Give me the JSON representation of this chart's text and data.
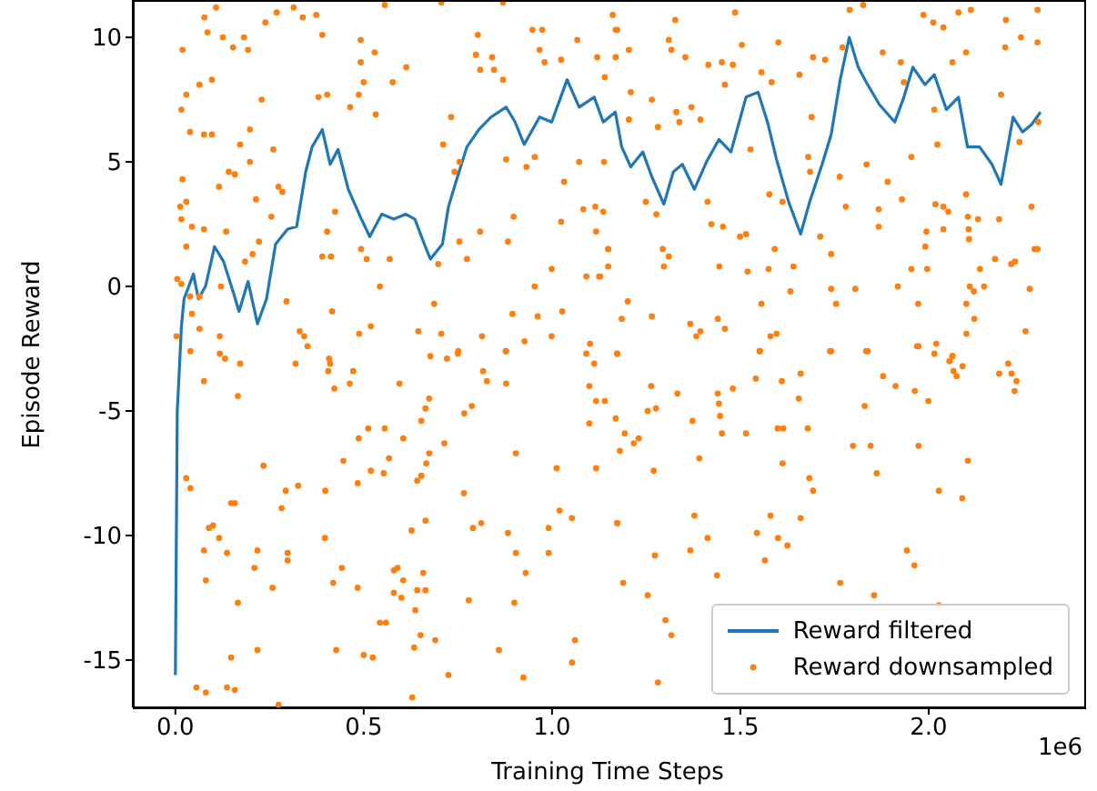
{
  "chart_data": {
    "type": "line",
    "xlabel": "Training Time Steps",
    "ylabel": "Episode Reward",
    "annotations": [
      "1e6"
    ],
    "legend": "bottom right",
    "xlim": [
      -0.113,
      2.413
    ],
    "xticks": [
      {
        "value": 0,
        "label": "0.0"
      },
      {
        "value": 0.5,
        "label": "0.5"
      },
      {
        "value": 1,
        "label": "1.0"
      },
      {
        "value": 1.5,
        "label": "1.5"
      },
      {
        "value": 2,
        "label": "2.0"
      }
    ],
    "ylim": [
      -16.9,
      11.5
    ],
    "yticks": [
      -15,
      -10,
      -5,
      0,
      5,
      10
    ],
    "series": [
      {
        "name": "Reward filtered",
        "color": "#1f77b4",
        "line_style": "solid",
        "x": [
          0,
          0.005,
          0.011,
          0.016,
          0.023,
          0.048,
          0.061,
          0.08,
          0.104,
          0.128,
          0.153,
          0.169,
          0.193,
          0.218,
          0.242,
          0.266,
          0.298,
          0.322,
          0.346,
          0.363,
          0.39,
          0.411,
          0.432,
          0.459,
          0.491,
          0.516,
          0.548,
          0.58,
          0.612,
          0.636,
          0.661,
          0.677,
          0.709,
          0.725,
          0.749,
          0.774,
          0.806,
          0.838,
          0.878,
          0.902,
          0.926,
          0.967,
          0.999,
          1.04,
          1.072,
          1.112,
          1.136,
          1.168,
          1.185,
          1.209,
          1.241,
          1.265,
          1.297,
          1.322,
          1.346,
          1.378,
          1.41,
          1.443,
          1.475,
          1.515,
          1.547,
          1.572,
          1.596,
          1.628,
          1.66,
          1.684,
          1.717,
          1.741,
          1.765,
          1.789,
          1.813,
          1.838,
          1.869,
          1.91,
          1.934,
          1.958,
          1.99,
          2.015,
          2.047,
          2.079,
          2.103,
          2.135,
          2.168,
          2.192,
          2.224,
          2.249,
          2.273,
          2.297
        ],
        "values": [
          -15.6,
          -5.0,
          -3.2,
          -1.6,
          -0.5,
          0.5,
          -0.5,
          0.0,
          1.6,
          1.0,
          -0.2,
          -1.0,
          0.2,
          -1.5,
          -0.5,
          1.7,
          2.3,
          2.4,
          4.6,
          5.6,
          6.3,
          4.9,
          5.5,
          3.9,
          2.8,
          2.0,
          2.9,
          2.7,
          2.9,
          2.7,
          1.7,
          1.1,
          1.7,
          3.2,
          4.4,
          5.6,
          6.3,
          6.8,
          7.2,
          6.6,
          5.7,
          6.8,
          6.6,
          8.3,
          7.2,
          7.6,
          6.6,
          7.0,
          5.6,
          4.8,
          5.4,
          4.4,
          3.3,
          4.6,
          4.9,
          3.9,
          5.0,
          5.9,
          5.4,
          7.6,
          7.8,
          6.6,
          5.1,
          3.4,
          2.1,
          3.4,
          4.9,
          6.1,
          8.3,
          10.0,
          8.8,
          8.1,
          7.3,
          6.6,
          7.6,
          8.8,
          8.1,
          8.5,
          7.1,
          7.6,
          5.6,
          5.6,
          4.9,
          4.1,
          6.8,
          6.2,
          6.5,
          7.0
        ]
      },
      {
        "name": "Reward downsampled",
        "type": "scatter",
        "color": "#ff7f0e",
        "marker": "circle",
        "x": [
          0.077,
          0.108,
          0.019,
          0.085,
          0.126,
          0.153,
          0.182,
          0.193,
          0.239,
          0.269,
          0.314,
          0.338,
          0.374,
          0.39,
          0.492,
          0.529,
          0.492,
          0.613,
          0.577,
          0.5,
          0.487,
          0.464,
          0.532,
          0.403,
          0.38,
          0.229,
          0.097,
          0.064,
          0.029,
          0.016,
          0.039,
          0.076,
          0.097,
          0.198,
          0.172,
          0.26,
          0.198,
          0.142,
          0.158,
          0.116,
          0.019,
          0.013,
          0.029,
          0.016,
          0.044,
          0.076,
          0.029,
          0.135,
          0.214,
          0.255,
          0.274,
          0.284,
          0.005,
          0.016,
          0.039,
          0.064,
          0.044,
          0.003,
          0.064,
          0.118,
          0.121,
          0.185,
          0.205,
          0.222,
          0.295,
          0.39,
          0.413,
          0.424,
          0.403,
          0.493,
          0.508,
          0.569,
          0.543,
          0.687,
          0.645,
          0.706,
          0.488,
          0.519,
          0.416,
          0.33,
          0.342,
          0.351,
          0.803,
          0.798,
          0.809,
          0.841,
          0.846,
          0.87,
          0.732,
          0.711,
          0.754,
          0.741,
          0.878,
          0.932,
          0.954,
          1.032,
          1.072,
          1.083,
          1.115,
          1.024,
          1.117,
          1.149,
          1.091,
          1.125,
          0.999,
          0.954,
          0.895,
          0.962,
          1.027,
          0.999,
          0.927,
          1.101,
          0.878,
          0.814,
          0.75,
          0.948,
          0.974,
          0.967,
          0.98,
          1.024,
          1.067,
          1.12,
          1.169,
          0.898,
          0.883,
          0.809,
          0.774,
          0.754,
          0.698,
          0.556,
          0.706,
          0.87,
          1.161,
          1.173,
          1.204,
          1.169,
          1.14,
          1.209,
          1.204,
          1.265,
          1.281,
          1.33,
          1.338,
          1.37,
          1.394,
          1.31,
          1.317,
          1.327,
          1.354,
          1.415,
          1.451,
          1.48,
          1.486,
          1.504,
          1.459,
          1.556,
          1.601,
          1.583,
          1.657,
          1.693,
          1.725,
          1.79,
          1.771,
          1.826,
          1.878,
          1.926,
          1.934,
          1.986,
          2.012,
          2.039,
          2.079,
          2.112,
          2.063,
          2.099,
          2.205,
          2.245,
          2.203,
          2.289,
          2.289,
          2.192,
          1.138,
          1.136,
          1.149,
          1.149,
          1.128,
          1.201,
          1.185,
          1.173,
          1.249,
          1.277,
          1.294,
          1.297,
          1.31,
          1.265,
          1.367,
          1.394,
          1.383,
          1.44,
          1.459,
          1.413,
          1.423,
          1.454,
          1.444,
          1.499,
          1.515,
          1.519,
          1.527,
          1.552,
          1.556,
          1.591,
          1.575,
          1.577,
          1.612,
          1.58,
          1.596,
          1.633,
          1.641,
          1.68,
          1.689,
          1.685,
          1.712,
          1.741,
          1.741,
          1.754,
          1.741,
          1.764,
          1.78,
          1.805,
          1.838,
          1.835,
          1.867,
          1.867,
          1.891,
          1.918,
          1.929,
          1.954,
          1.954,
          1.972,
          1.973,
          1.996,
          1.994,
          1.991,
          2.018,
          2.023,
          2.039,
          2.052,
          2.039,
          2.099,
          2.104,
          2.131,
          2.106,
          2.107,
          2.136,
          2.109,
          2.12,
          2.147,
          2.1,
          2.121,
          2.1,
          2.02,
          2.063,
          2.187,
          2.176,
          2.219,
          2.229,
          2.273,
          2.281,
          2.268,
          2.289,
          2.257,
          2.241,
          2.291,
          2.015,
          0.04,
          0.118,
          0.132,
          0.172,
          0.076,
          0.166,
          0.234,
          0.029,
          0.04,
          0.089,
          0.1,
          0.116,
          0.076,
          0.137,
          0.081,
          0.166,
          0.21,
          0.218,
          0.148,
          0.158,
          0.282,
          0.293,
          0.326,
          0.298,
          0.298,
          0.258,
          0.148,
          0.218,
          0.056,
          0.081,
          0.137,
          0.158,
          0.274,
          0.319,
          0.408,
          0.411,
          0.406,
          0.422,
          0.463,
          0.472,
          0.398,
          0.446,
          0.484,
          0.487,
          0.512,
          0.519,
          0.556,
          0.553,
          0.567,
          0.605,
          0.595,
          0.627,
          0.642,
          0.653,
          0.666,
          0.664,
          0.674,
          0.664,
          0.674,
          0.653,
          0.677,
          0.721,
          0.714,
          0.751,
          0.767,
          0.787,
          0.817,
          0.827,
          0.877,
          0.878,
          0.766,
          0.79,
          0.812,
          0.883,
          0.904,
          0.904,
          0.93,
          0.9,
          0.397,
          0.419,
          0.442,
          0.484,
          0.58,
          0.59,
          0.605,
          0.58,
          0.6,
          0.642,
          0.658,
          0.664,
          0.637,
          0.651,
          0.69,
          0.543,
          0.559,
          0.427,
          0.5,
          0.524,
          0.634,
          0.725,
          0.629,
          0.779,
          0.859,
          0.924,
          0.991,
          0.991,
          1.012,
          1.02,
          1.053,
          1.053,
          1.061,
          1.091,
          1.112,
          1.099,
          1.117,
          1.099,
          1.117,
          1.173,
          1.173,
          1.14,
          1.169,
          1.193,
          1.217,
          1.23,
          1.18,
          1.263,
          1.254,
          1.276,
          1.333,
          1.373,
          1.391,
          1.44,
          1.443,
          1.446,
          1.451,
          1.48,
          1.515,
          1.541,
          1.551,
          1.61,
          1.599,
          1.614,
          1.612,
          1.655,
          1.66,
          1.679,
          1.683,
          1.693,
          1.66,
          1.58,
          1.544,
          1.6,
          1.625,
          1.565,
          1.378,
          1.413,
          1.367,
          1.27,
          1.273,
          1.173,
          1.189,
          1.254,
          1.301,
          1.317,
          1.281,
          1.438,
          1.765,
          1.738,
          1.799,
          1.846,
          1.862,
          1.83,
          1.834,
          1.879,
          1.912,
          1.963,
          1.999,
          1.973,
          2.027,
          2.089,
          2.104,
          1.942,
          1.962,
          1.855,
          2.027,
          2.055,
          2.066,
          2.074,
          2.09,
          2.063,
          2.015,
          1.969,
          2.187,
          2.211,
          2.22,
          2.233,
          2.228
        ],
        "values": [
          10.8,
          11.2,
          9.5,
          10.2,
          10.0,
          9.6,
          10.0,
          9.5,
          10.6,
          11.0,
          11.2,
          10.8,
          10.9,
          10.1,
          9.9,
          9.4,
          9.0,
          8.8,
          8.2,
          8.2,
          7.7,
          7.2,
          6.9,
          7.7,
          7.6,
          7.5,
          8.3,
          8.1,
          7.7,
          7.1,
          6.2,
          6.1,
          6.1,
          6.3,
          5.7,
          5.5,
          5.0,
          4.6,
          4.5,
          4.0,
          4.3,
          3.2,
          3.4,
          2.7,
          2.4,
          2.3,
          1.6,
          2.2,
          3.5,
          2.8,
          4.0,
          3.8,
          0.3,
          0.1,
          -0.4,
          -0.4,
          -1.1,
          -2.0,
          -1.7,
          -2.0,
          0.0,
          1.0,
          1.3,
          1.8,
          -0.6,
          1.2,
          1.2,
          3.0,
          2.2,
          1.5,
          1.1,
          1.1,
          0.0,
          -0.7,
          -1.8,
          -1.9,
          -1.9,
          -1.6,
          -1.0,
          -1.8,
          -2.0,
          -2.4,
          10.1,
          9.3,
          8.7,
          9.2,
          8.7,
          8.3,
          6.8,
          5.7,
          5.0,
          4.6,
          5.1,
          4.8,
          5.2,
          4.2,
          5.0,
          3.1,
          3.2,
          2.6,
          2.2,
          1.5,
          0.4,
          0.4,
          0.7,
          0.0,
          -1.1,
          -1.2,
          -1.0,
          -2.0,
          -2.2,
          -2.3,
          -2.6,
          -2.0,
          -2.7,
          10.3,
          10.3,
          9.5,
          9.0,
          9.1,
          9.9,
          9.2,
          10.3,
          2.8,
          1.8,
          2.2,
          1.1,
          1.8,
          0.9,
          11.3,
          11.4,
          11.4,
          10.9,
          10.3,
          9.5,
          9.2,
          8.4,
          7.8,
          6.7,
          7.5,
          6.4,
          7.0,
          6.6,
          7.2,
          6.7,
          9.9,
          9.5,
          10.7,
          9.2,
          8.9,
          9.0,
          8.9,
          11.0,
          9.7,
          8.1,
          8.6,
          9.8,
          8.2,
          8.5,
          9.2,
          9.1,
          11.1,
          9.6,
          11.3,
          9.4,
          9.0,
          8.2,
          10.9,
          10.6,
          10.4,
          11.0,
          11.1,
          9.0,
          9.4,
          10.7,
          10.0,
          9.6,
          11.1,
          9.8,
          7.7,
          5.0,
          3.0,
          1.5,
          0.8,
          0.4,
          -0.6,
          -1.3,
          -2.7,
          3.4,
          2.9,
          1.5,
          0.8,
          1.2,
          -1.2,
          -1.5,
          -1.8,
          -2.0,
          -1.3,
          -1.7,
          3.4,
          2.5,
          2.4,
          0.8,
          2.0,
          2.1,
          0.6,
          5.5,
          -2.6,
          -0.7,
          1.5,
          0.7,
          3.7,
          3.4,
          -2.0,
          -1.9,
          -0.2,
          0.8,
          5.2,
          6.8,
          4.6,
          2.0,
          1.3,
          -0.1,
          -0.7,
          -2.6,
          4.4,
          3.2,
          -0.1,
          -2.6,
          4.9,
          3.1,
          2.4,
          4.2,
          0.0,
          3.5,
          5.2,
          0.7,
          -0.7,
          -2.4,
          0.7,
          2.2,
          1.6,
          3.3,
          5.7,
          3.2,
          3.0,
          2.3,
          3.7,
          2.8,
          2.7,
          2.3,
          1.9,
          0.7,
          0.0,
          -0.2,
          0.0,
          -0.7,
          -1.3,
          -1.9,
          -2.3,
          -2.8,
          2.7,
          1.1,
          0.9,
          1.0,
          3.2,
          1.5,
          -0.1,
          1.5,
          -1.8,
          5.8,
          6.6,
          7.1,
          -2.6,
          -2.7,
          -2.9,
          -3.1,
          -3.8,
          -4.4,
          -7.2,
          -7.7,
          -8.1,
          -9.7,
          -9.6,
          -10.1,
          -10.6,
          -10.7,
          -11.8,
          -12.7,
          -11.3,
          -10.6,
          -8.7,
          -8.7,
          -8.9,
          -8.2,
          -8.0,
          -10.7,
          -11.0,
          -12.1,
          -14.9,
          -14.6,
          -16.1,
          -16.3,
          -16.1,
          -16.2,
          -16.8,
          -3.1,
          -2.9,
          -3.1,
          -3.4,
          -4.1,
          -3.9,
          -3.4,
          -8.2,
          -7.0,
          -7.9,
          -6.1,
          -5.7,
          -7.4,
          -5.7,
          -7.5,
          -6.9,
          -6.1,
          -3.9,
          -9.8,
          -7.8,
          -7.6,
          -7.1,
          -9.4,
          -6.7,
          -4.9,
          -4.5,
          -5.4,
          -2.8,
          -2.9,
          -6.3,
          -2.6,
          -5.1,
          -4.8,
          -3.4,
          -3.8,
          -2.6,
          -3.9,
          -8.3,
          -9.7,
          -9.5,
          -9.9,
          -6.7,
          -10.7,
          -11.5,
          -12.7,
          -10.1,
          -11.9,
          -11.3,
          -12.1,
          -11.4,
          -11.3,
          -11.8,
          -12.3,
          -12.5,
          -12.2,
          -11.5,
          -12.2,
          -13.0,
          -14.0,
          -14.2,
          -13.5,
          -13.5,
          -14.6,
          -14.8,
          -14.9,
          -14.5,
          -15.6,
          -16.5,
          -12.6,
          -14.6,
          -15.7,
          -9.7,
          -10.7,
          -7.3,
          -9.0,
          -9.3,
          -15.1,
          -14.2,
          -2.7,
          -3.1,
          -4.0,
          -4.6,
          -5.5,
          -7.3,
          -9.5,
          -2.7,
          -4.6,
          -5.3,
          -5.9,
          -6.3,
          -6.1,
          -6.6,
          -4.0,
          -5.0,
          -4.9,
          -4.3,
          -5.4,
          -6.9,
          -4.3,
          -4.7,
          -5.2,
          -5.9,
          -4.1,
          -5.9,
          -3.7,
          -2.6,
          -3.8,
          -5.7,
          -5.7,
          -7.1,
          -4.5,
          -3.5,
          -5.7,
          -7.7,
          -8.2,
          -9.3,
          -9.2,
          -9.9,
          -10.1,
          -10.4,
          -11.0,
          -9.2,
          -10.1,
          -10.6,
          -7.4,
          -10.8,
          -9.5,
          -11.9,
          -12.4,
          -13.4,
          -14.0,
          -15.9,
          -11.6,
          -11.9,
          -2.6,
          -6.4,
          -6.4,
          -7.5,
          -4.8,
          -2.6,
          -3.6,
          -4.0,
          -4.2,
          -4.6,
          -6.4,
          -8.2,
          -8.5,
          -7.0,
          -10.6,
          -11.2,
          -12.4,
          -12.8,
          -3.0,
          -3.4,
          -3.6,
          -3.2,
          -2.8,
          -2.7,
          -2.4,
          -3.5,
          -3.1,
          -3.5,
          -3.8,
          -4.2
        ]
      }
    ]
  }
}
